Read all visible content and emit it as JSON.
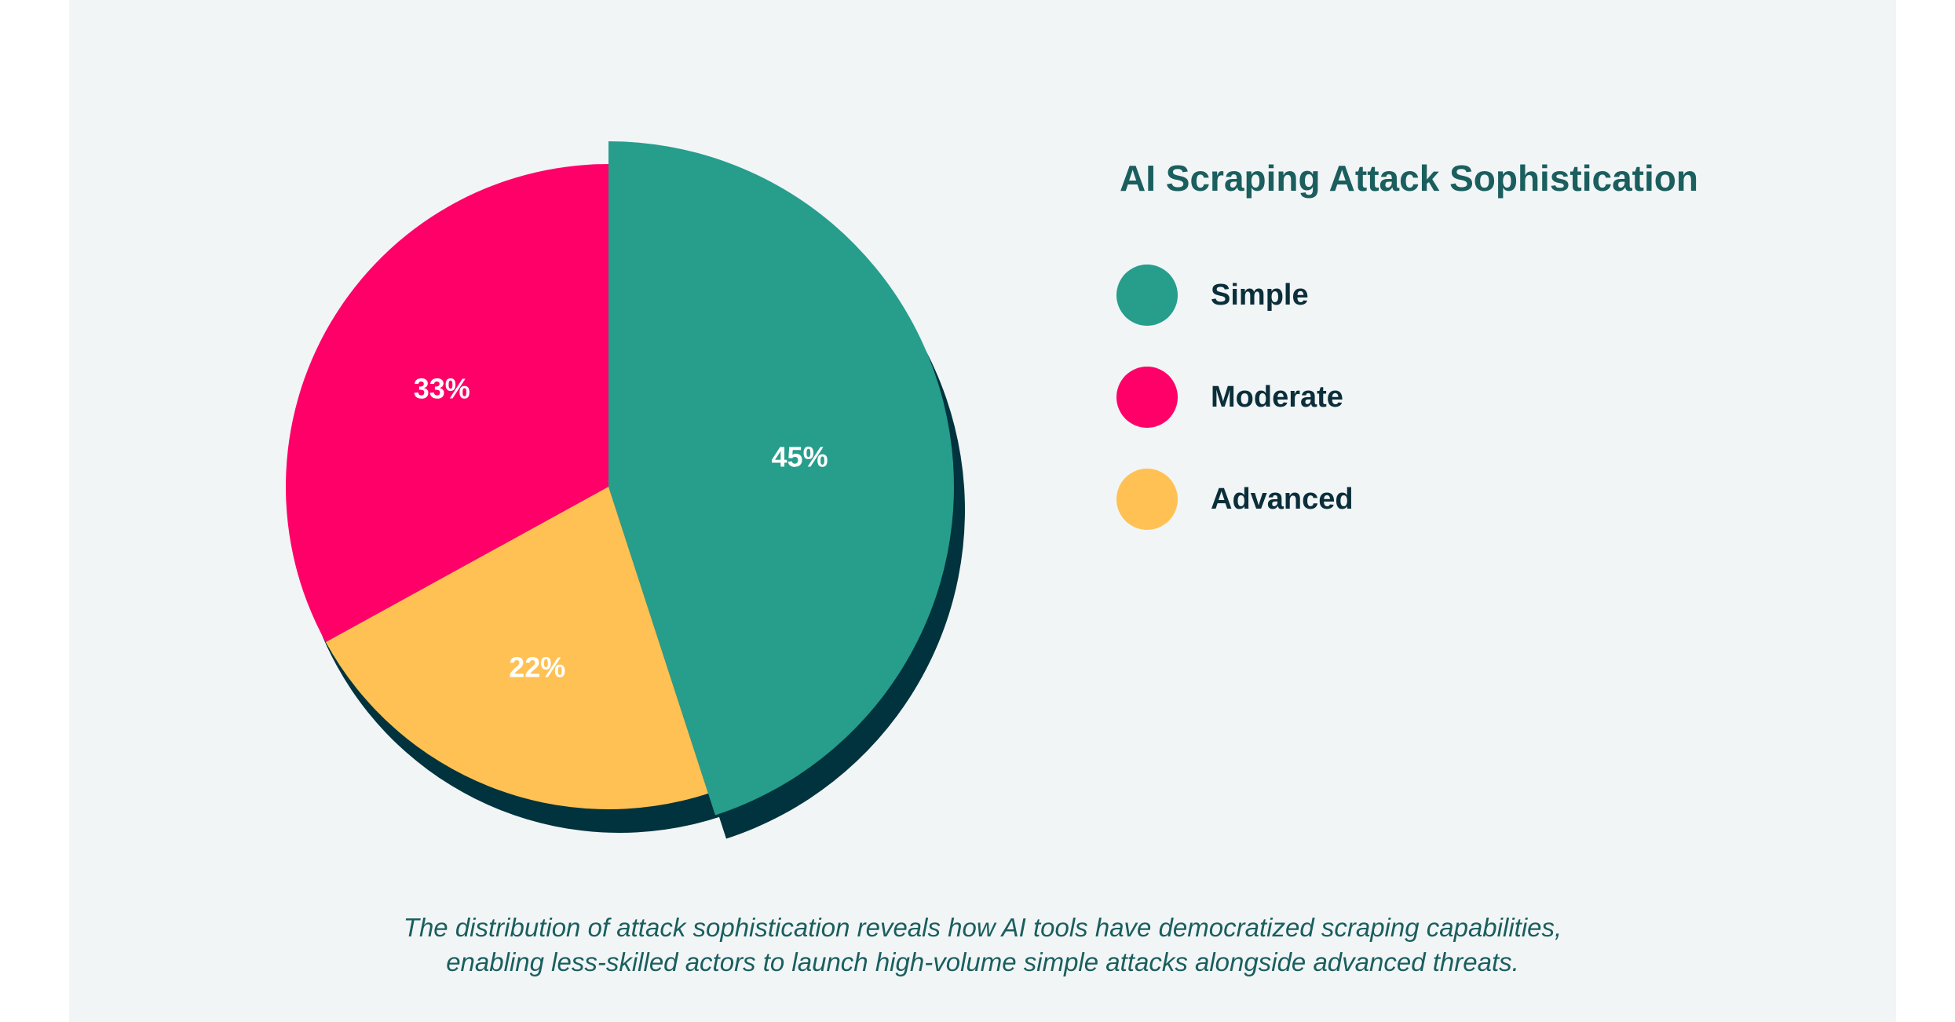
{
  "chart_data": {
    "type": "pie",
    "title": "AI Scraping Attack Sophistication",
    "slices": [
      {
        "label": "Simple",
        "value": 45,
        "display": "45%",
        "color": "#279d8c",
        "highlighted": true
      },
      {
        "label": "Advanced",
        "value": 22,
        "display": "22%",
        "color": "#ffc153"
      },
      {
        "label": "Moderate",
        "value": 33,
        "display": "33%",
        "color": "#ff0068"
      }
    ],
    "legend": [
      {
        "label": "Simple",
        "color": "#279d8c"
      },
      {
        "label": "Moderate",
        "color": "#ff0068"
      },
      {
        "label": "Advanced",
        "color": "#ffc153"
      }
    ],
    "legend_position": "right",
    "shadow_color": "#00333d"
  },
  "caption": {
    "line1": "The distribution of attack sophistication reveals how AI tools have democratized scraping capabilities,",
    "line2": "enabling less-skilled actors to launch high-volume simple attacks alongside advanced threats."
  }
}
